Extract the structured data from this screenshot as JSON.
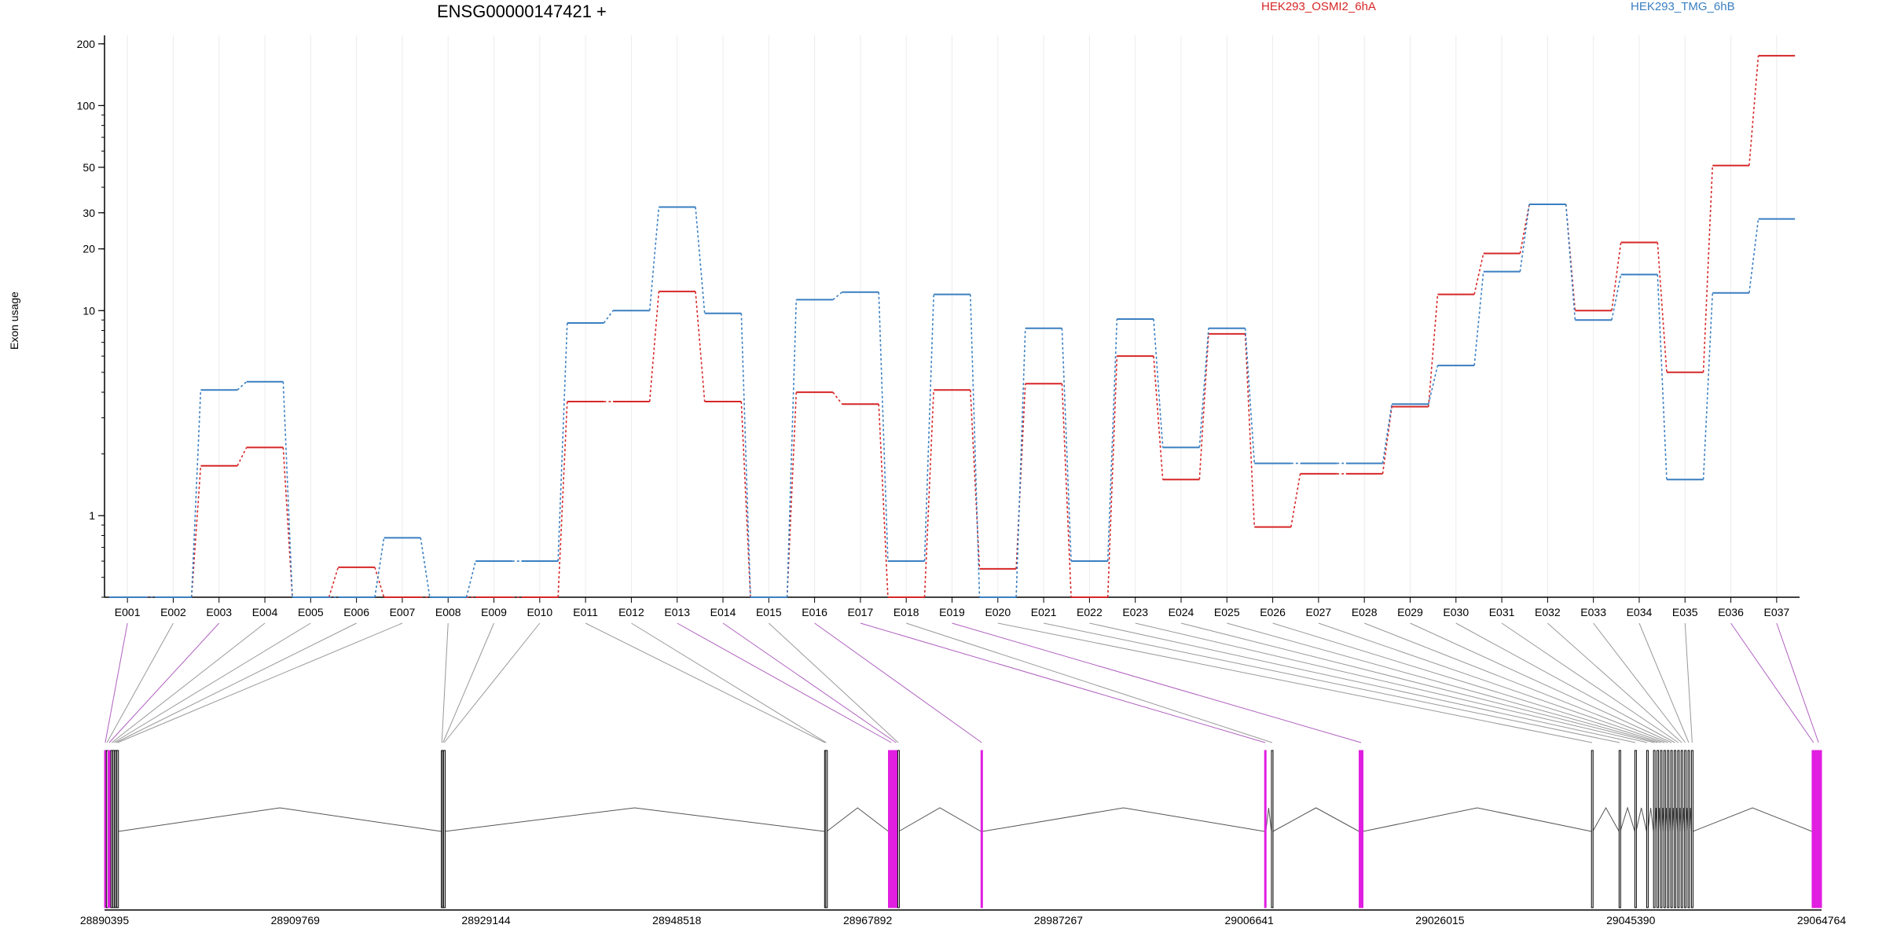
{
  "chart_data": {
    "type": "line",
    "title": "ENSG00000147421 +",
    "ylabel": "Exon usage",
    "xlabel": "",
    "y_scale": "log",
    "ylim": [
      0.4,
      220
    ],
    "y_ticks": [
      1,
      10,
      20,
      30,
      50,
      100,
      200
    ],
    "legend_position": "top",
    "categories": [
      "E001",
      "E002",
      "E003",
      "E004",
      "E005",
      "E006",
      "E007",
      "E008",
      "E009",
      "E010",
      "E011",
      "E012",
      "E013",
      "E014",
      "E015",
      "E016",
      "E017",
      "E018",
      "E019",
      "E020",
      "E021",
      "E022",
      "E023",
      "E024",
      "E025",
      "E026",
      "E027",
      "E028",
      "E029",
      "E030",
      "E031",
      "E032",
      "E033",
      "E034",
      "E035",
      "E036",
      "E037"
    ],
    "series": [
      {
        "name": "HEK293_OSMI2_6hA",
        "color": "#d62728",
        "values": [
          0.4,
          0.4,
          1.75,
          2.15,
          0.4,
          0.56,
          0.4,
          0.4,
          0.4,
          0.4,
          3.6,
          3.6,
          12.4,
          3.6,
          0.4,
          4.0,
          3.5,
          0.4,
          4.1,
          0.55,
          4.4,
          0.4,
          6.0,
          1.5,
          7.7,
          0.88,
          1.6,
          1.6,
          3.4,
          12.0,
          19.0,
          33.0,
          10.0,
          21.5,
          5.0,
          51.0,
          175.0
        ]
      },
      {
        "name": "HEK293_TMG_6hB",
        "color": "#3a7fc1",
        "values": [
          0.4,
          0.4,
          4.1,
          4.5,
          0.4,
          0.4,
          0.78,
          0.4,
          0.6,
          0.6,
          8.7,
          10.0,
          32.0,
          9.7,
          0.4,
          11.3,
          12.3,
          0.6,
          12.0,
          0.4,
          8.2,
          0.6,
          9.1,
          2.15,
          8.2,
          1.8,
          1.8,
          1.8,
          3.5,
          5.4,
          15.5,
          33.0,
          9.0,
          15.0,
          1.5,
          12.2,
          28.0
        ]
      }
    ]
  },
  "gene_model": {
    "coord_ticks": [
      "28890395",
      "28909769",
      "28929144",
      "28948518",
      "28967892",
      "28987267",
      "29006641",
      "29026015",
      "29045390",
      "29064764"
    ],
    "coord_range": [
      28890395,
      29064764
    ],
    "exon_color": "#e01fe0",
    "line_color": "#555555",
    "highlight_color": "#b060c0",
    "exons": [
      {
        "start": 28890395,
        "end": 28890540,
        "highlight": true
      },
      {
        "start": 28890580,
        "end": 28890700,
        "highlight": false
      },
      {
        "start": 28890750,
        "end": 28891000,
        "highlight": true
      },
      {
        "start": 28891050,
        "end": 28891200,
        "highlight": false
      },
      {
        "start": 28891250,
        "end": 28891400,
        "highlight": false
      },
      {
        "start": 28891450,
        "end": 28891600,
        "highlight": false
      },
      {
        "start": 28891650,
        "end": 28891800,
        "highlight": false
      },
      {
        "start": 28924600,
        "end": 28924700,
        "highlight": false
      },
      {
        "start": 28924720,
        "end": 28924820,
        "highlight": false
      },
      {
        "start": 28924840,
        "end": 28924940,
        "highlight": false
      },
      {
        "start": 28963520,
        "end": 28963620,
        "highlight": false
      },
      {
        "start": 28963640,
        "end": 28963740,
        "highlight": false
      },
      {
        "start": 28970000,
        "end": 28970600,
        "highlight": true
      },
      {
        "start": 28970650,
        "end": 28970900,
        "highlight": true
      },
      {
        "start": 28970950,
        "end": 28971050,
        "highlight": false
      },
      {
        "start": 28979400,
        "end": 28979560,
        "highlight": true
      },
      {
        "start": 29008200,
        "end": 29008330,
        "highlight": true
      },
      {
        "start": 29008900,
        "end": 29009050,
        "highlight": false
      },
      {
        "start": 29017800,
        "end": 29018200,
        "highlight": true
      },
      {
        "start": 29041400,
        "end": 29041520,
        "highlight": false
      },
      {
        "start": 29044200,
        "end": 29044320,
        "highlight": false
      },
      {
        "start": 29045800,
        "end": 29045920,
        "highlight": false
      },
      {
        "start": 29047000,
        "end": 29047120,
        "highlight": false
      },
      {
        "start": 29047700,
        "end": 29047850,
        "highlight": false
      },
      {
        "start": 29048050,
        "end": 29048200,
        "highlight": false
      },
      {
        "start": 29048400,
        "end": 29048550,
        "highlight": false
      },
      {
        "start": 29048750,
        "end": 29048900,
        "highlight": false
      },
      {
        "start": 29049100,
        "end": 29049250,
        "highlight": false
      },
      {
        "start": 29049450,
        "end": 29049600,
        "highlight": false
      },
      {
        "start": 29049800,
        "end": 29049950,
        "highlight": false
      },
      {
        "start": 29050150,
        "end": 29050300,
        "highlight": false
      },
      {
        "start": 29050500,
        "end": 29050650,
        "highlight": false
      },
      {
        "start": 29050850,
        "end": 29051000,
        "highlight": false
      },
      {
        "start": 29051200,
        "end": 29051350,
        "highlight": false
      },
      {
        "start": 29051550,
        "end": 29051700,
        "highlight": false
      },
      {
        "start": 29063800,
        "end": 29064100,
        "highlight": true
      },
      {
        "start": 29064150,
        "end": 29064764,
        "highlight": true
      }
    ]
  }
}
